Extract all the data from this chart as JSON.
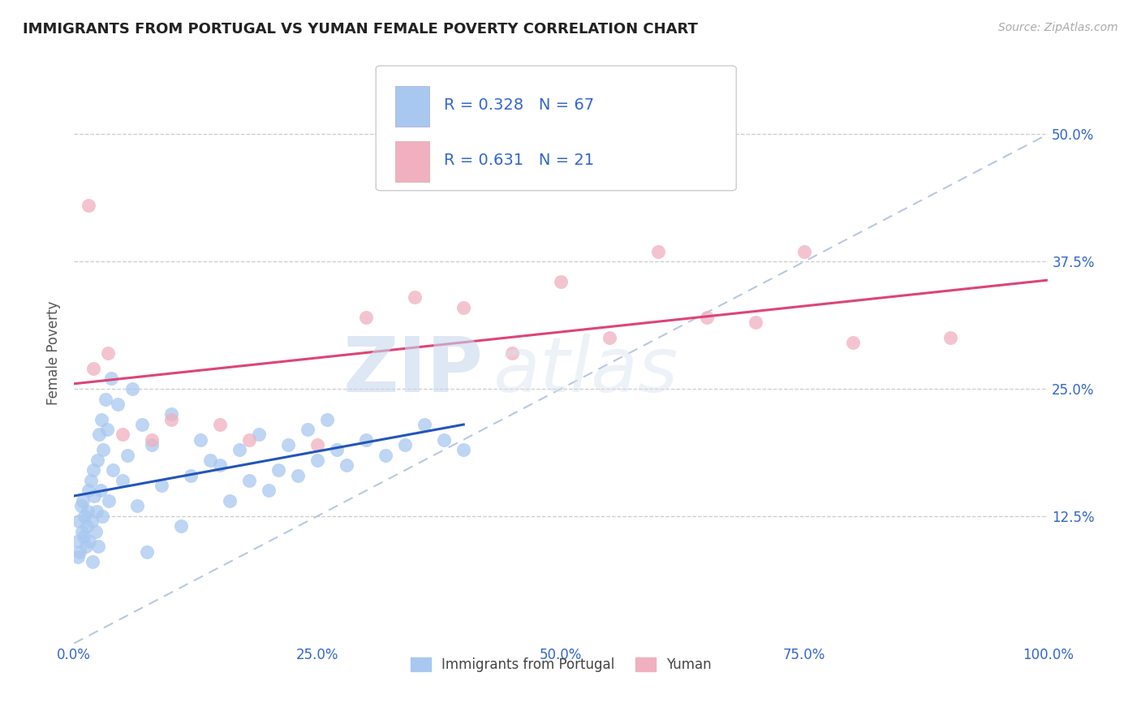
{
  "title": "IMMIGRANTS FROM PORTUGAL VS YUMAN FEMALE POVERTY CORRELATION CHART",
  "source": "Source: ZipAtlas.com",
  "ylabel": "Female Poverty",
  "watermark_zip": "ZIP",
  "watermark_atlas": "atlas",
  "legend_label1": "Immigrants from Portugal",
  "legend_label2": "Yuman",
  "R1": 0.328,
  "N1": 67,
  "R2": 0.631,
  "N2": 21,
  "xlim": [
    0,
    100
  ],
  "ylim": [
    0,
    57
  ],
  "xtick_labels": [
    "0.0%",
    "25.0%",
    "50.0%",
    "75.0%",
    "100.0%"
  ],
  "xtick_vals": [
    0,
    25,
    50,
    75,
    100
  ],
  "ytick_labels": [
    "12.5%",
    "25.0%",
    "37.5%",
    "50.0%"
  ],
  "ytick_vals": [
    12.5,
    25.0,
    37.5,
    50.0
  ],
  "color_blue": "#a8c8f0",
  "color_blue_edge": "#7aaade",
  "color_pink": "#f0b0c0",
  "color_pink_edge": "#e080a0",
  "line_blue": "#2255bb",
  "line_pink": "#dd4477",
  "grid_color": "#cccccc",
  "blue_x": [
    0.3,
    0.4,
    0.5,
    0.6,
    0.7,
    0.8,
    0.9,
    1.0,
    1.1,
    1.2,
    1.3,
    1.4,
    1.5,
    1.6,
    1.7,
    1.8,
    1.9,
    2.0,
    2.1,
    2.2,
    2.3,
    2.4,
    2.5,
    2.6,
    2.7,
    2.8,
    2.9,
    3.0,
    3.2,
    3.4,
    3.6,
    3.8,
    4.0,
    4.5,
    5.0,
    5.5,
    6.0,
    6.5,
    7.0,
    7.5,
    8.0,
    9.0,
    10.0,
    11.0,
    12.0,
    13.0,
    14.0,
    15.0,
    16.0,
    17.0,
    18.0,
    19.0,
    20.0,
    21.0,
    22.0,
    23.0,
    24.0,
    25.0,
    26.0,
    27.0,
    28.0,
    30.0,
    32.0,
    34.0,
    36.0,
    38.0,
    40.0
  ],
  "blue_y": [
    10.0,
    8.5,
    12.0,
    9.0,
    13.5,
    11.0,
    14.0,
    10.5,
    12.5,
    9.5,
    11.5,
    13.0,
    15.0,
    10.0,
    16.0,
    12.0,
    8.0,
    17.0,
    14.5,
    11.0,
    13.0,
    18.0,
    9.5,
    20.5,
    15.0,
    22.0,
    12.5,
    19.0,
    24.0,
    21.0,
    14.0,
    26.0,
    17.0,
    23.5,
    16.0,
    18.5,
    25.0,
    13.5,
    21.5,
    9.0,
    19.5,
    15.5,
    22.5,
    11.5,
    16.5,
    20.0,
    18.0,
    17.5,
    14.0,
    19.0,
    16.0,
    20.5,
    15.0,
    17.0,
    19.5,
    16.5,
    21.0,
    18.0,
    22.0,
    19.0,
    17.5,
    20.0,
    18.5,
    19.5,
    21.5,
    20.0,
    19.0
  ],
  "pink_x": [
    1.5,
    2.0,
    3.5,
    5.0,
    8.0,
    10.0,
    15.0,
    18.0,
    25.0,
    30.0,
    35.0,
    40.0,
    45.0,
    50.0,
    55.0,
    60.0,
    65.0,
    70.0,
    75.0,
    80.0,
    90.0
  ],
  "pink_y": [
    43.0,
    27.0,
    28.5,
    20.5,
    20.0,
    22.0,
    21.5,
    20.0,
    19.5,
    32.0,
    34.0,
    33.0,
    28.5,
    35.5,
    30.0,
    38.5,
    32.0,
    31.5,
    38.5,
    29.5,
    30.0
  ]
}
